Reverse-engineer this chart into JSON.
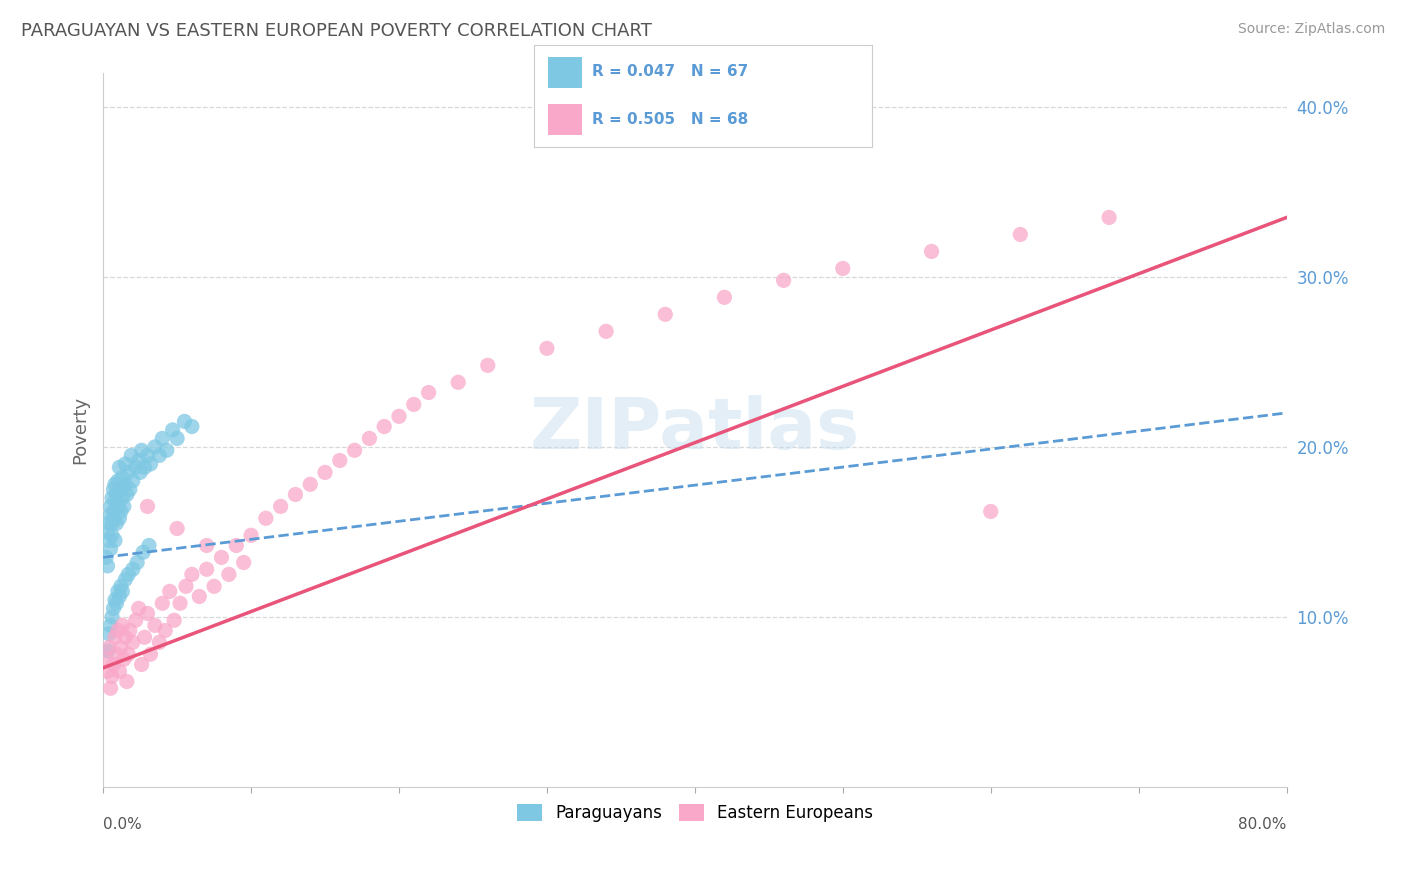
{
  "title": "PARAGUAYAN VS EASTERN EUROPEAN POVERTY CORRELATION CHART",
  "source": "Source: ZipAtlas.com",
  "ylabel": "Poverty",
  "xlim": [
    0.0,
    0.8
  ],
  "ylim": [
    0.0,
    0.42
  ],
  "yticks": [
    0.1,
    0.2,
    0.3,
    0.4
  ],
  "ytick_labels": [
    "10.0%",
    "20.0%",
    "30.0%",
    "40.0%"
  ],
  "paraguayan_color": "#7ec8e3",
  "eastern_color": "#f9a8c9",
  "trend_blue_color": "#5b9bd5",
  "trend_pink_color": "#e8547a",
  "watermark_color": "#d0e8f5",
  "background_color": "#ffffff",
  "grid_color": "#d8d8d8",
  "par_trend_start_y": 0.135,
  "par_trend_end_y": 0.22,
  "eas_trend_start_y": 0.07,
  "eas_trend_end_y": 0.335,
  "paraguayans_x": [
    0.002,
    0.003,
    0.003,
    0.004,
    0.004,
    0.005,
    0.005,
    0.005,
    0.006,
    0.006,
    0.006,
    0.007,
    0.007,
    0.007,
    0.008,
    0.008,
    0.008,
    0.009,
    0.009,
    0.01,
    0.01,
    0.011,
    0.011,
    0.012,
    0.012,
    0.013,
    0.013,
    0.014,
    0.015,
    0.015,
    0.016,
    0.017,
    0.018,
    0.019,
    0.02,
    0.022,
    0.024,
    0.025,
    0.026,
    0.028,
    0.03,
    0.032,
    0.035,
    0.038,
    0.04,
    0.043,
    0.047,
    0.05,
    0.055,
    0.06,
    0.003,
    0.004,
    0.005,
    0.006,
    0.007,
    0.008,
    0.009,
    0.01,
    0.011,
    0.012,
    0.013,
    0.015,
    0.017,
    0.02,
    0.023,
    0.027,
    0.031
  ],
  "paraguayans_y": [
    0.135,
    0.15,
    0.13,
    0.145,
    0.155,
    0.16,
    0.14,
    0.165,
    0.155,
    0.17,
    0.148,
    0.162,
    0.175,
    0.158,
    0.168,
    0.145,
    0.178,
    0.155,
    0.172,
    0.165,
    0.18,
    0.158,
    0.188,
    0.162,
    0.175,
    0.17,
    0.182,
    0.165,
    0.178,
    0.19,
    0.172,
    0.185,
    0.175,
    0.195,
    0.18,
    0.188,
    0.192,
    0.185,
    0.198,
    0.188,
    0.195,
    0.19,
    0.2,
    0.195,
    0.205,
    0.198,
    0.21,
    0.205,
    0.215,
    0.212,
    0.08,
    0.09,
    0.095,
    0.1,
    0.105,
    0.11,
    0.108,
    0.115,
    0.112,
    0.118,
    0.115,
    0.122,
    0.125,
    0.128,
    0.132,
    0.138,
    0.142
  ],
  "eastern_x": [
    0.002,
    0.003,
    0.004,
    0.005,
    0.006,
    0.007,
    0.008,
    0.009,
    0.01,
    0.011,
    0.012,
    0.013,
    0.014,
    0.015,
    0.016,
    0.017,
    0.018,
    0.02,
    0.022,
    0.024,
    0.026,
    0.028,
    0.03,
    0.032,
    0.035,
    0.038,
    0.04,
    0.042,
    0.045,
    0.048,
    0.052,
    0.056,
    0.06,
    0.065,
    0.07,
    0.075,
    0.08,
    0.085,
    0.09,
    0.095,
    0.1,
    0.11,
    0.12,
    0.13,
    0.14,
    0.15,
    0.16,
    0.17,
    0.18,
    0.19,
    0.2,
    0.21,
    0.22,
    0.24,
    0.26,
    0.3,
    0.34,
    0.38,
    0.42,
    0.46,
    0.5,
    0.56,
    0.62,
    0.68,
    0.03,
    0.05,
    0.07,
    0.6
  ],
  "eastern_y": [
    0.075,
    0.068,
    0.082,
    0.058,
    0.065,
    0.072,
    0.088,
    0.078,
    0.092,
    0.068,
    0.082,
    0.095,
    0.075,
    0.088,
    0.062,
    0.078,
    0.092,
    0.085,
    0.098,
    0.105,
    0.072,
    0.088,
    0.102,
    0.078,
    0.095,
    0.085,
    0.108,
    0.092,
    0.115,
    0.098,
    0.108,
    0.118,
    0.125,
    0.112,
    0.128,
    0.118,
    0.135,
    0.125,
    0.142,
    0.132,
    0.148,
    0.158,
    0.165,
    0.172,
    0.178,
    0.185,
    0.192,
    0.198,
    0.205,
    0.212,
    0.218,
    0.225,
    0.232,
    0.238,
    0.248,
    0.258,
    0.268,
    0.278,
    0.288,
    0.298,
    0.305,
    0.315,
    0.325,
    0.335,
    0.165,
    0.152,
    0.142,
    0.162
  ]
}
